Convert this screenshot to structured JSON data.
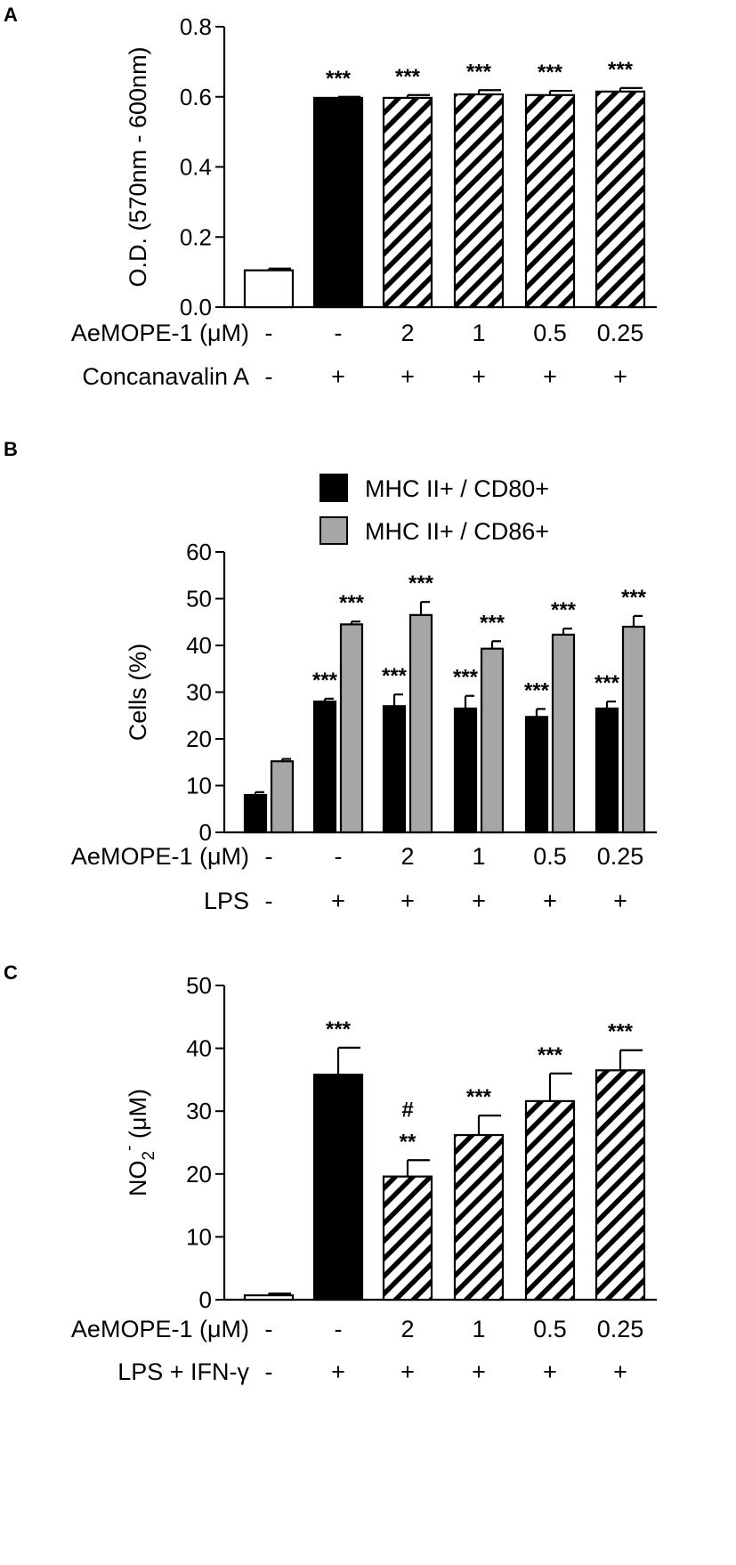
{
  "figure": {
    "colors": {
      "ink": "#000000",
      "background": "#ffffff",
      "black_bar": "#000000",
      "grey_bar": "#a6a6a6",
      "white_bar": "#ffffff"
    }
  },
  "chart_data": [
    {
      "panel": "A",
      "type": "bar",
      "title": "",
      "xlabel": "",
      "ylabel": "O.D. (570nm - 600nm)",
      "ylim": [
        0,
        0.8
      ],
      "yticks": [
        "0.0",
        "0.2",
        "0.4",
        "0.6",
        "0.8"
      ],
      "y_tick_values": [
        0,
        0.2,
        0.4,
        0.6,
        0.8
      ],
      "bar_styles": [
        "white",
        "black",
        "hatched",
        "hatched",
        "hatched",
        "hatched"
      ],
      "values": [
        0.105,
        0.597,
        0.597,
        0.607,
        0.605,
        0.615
      ],
      "errors": [
        0.005,
        0.003,
        0.008,
        0.012,
        0.012,
        0.01
      ],
      "significance": [
        "",
        "***",
        "***",
        "***",
        "***",
        "***"
      ],
      "rows": [
        {
          "label": "AeMOPE-1 (μM)",
          "values": [
            "-",
            "-",
            "2",
            "1",
            "0.5",
            "0.25"
          ]
        },
        {
          "label": "Concanavalin A",
          "values": [
            "-",
            "+",
            "+",
            "+",
            "+",
            "+"
          ]
        }
      ]
    },
    {
      "panel": "B",
      "type": "bar",
      "title": "",
      "xlabel": "",
      "ylabel": "Cells (%)",
      "ylim": [
        0,
        60
      ],
      "yticks": [
        "0",
        "10",
        "20",
        "30",
        "40",
        "50",
        "60"
      ],
      "y_tick_values": [
        0,
        10,
        20,
        30,
        40,
        50,
        60
      ],
      "legend_position": "top-right",
      "series": [
        {
          "name": "MHC II+ / CD80+",
          "style": "black",
          "values": [
            8.0,
            28.0,
            27.0,
            26.5,
            24.7,
            26.5
          ],
          "errors": [
            0.6,
            0.6,
            2.5,
            2.7,
            1.7,
            1.5
          ],
          "significance": [
            "",
            "***",
            "***",
            "***",
            "***",
            "***"
          ]
        },
        {
          "name": "MHC II+ / CD86+",
          "style": "grey",
          "values": [
            15.2,
            44.5,
            46.5,
            39.3,
            42.3,
            44.0
          ],
          "errors": [
            0.5,
            0.6,
            2.8,
            1.6,
            1.3,
            2.3
          ],
          "significance": [
            "",
            "***",
            "***",
            "***",
            "***",
            "***"
          ]
        }
      ],
      "rows": [
        {
          "label": "AeMOPE-1 (μM)",
          "values": [
            "-",
            "-",
            "2",
            "1",
            "0.5",
            "0.25"
          ]
        },
        {
          "label": "LPS",
          "values": [
            "-",
            "+",
            "+",
            "+",
            "+",
            "+"
          ]
        }
      ]
    },
    {
      "panel": "C",
      "type": "bar",
      "title": "",
      "xlabel": "",
      "ylabel": "NO2- (μM)",
      "ylabel_parts": {
        "base": "NO",
        "sub": "2",
        "sup": "-",
        "rest": " (μM)"
      },
      "ylim": [
        0,
        50
      ],
      "yticks": [
        "0",
        "10",
        "20",
        "30",
        "40",
        "50"
      ],
      "y_tick_values": [
        0,
        10,
        20,
        30,
        40,
        50
      ],
      "bar_styles": [
        "white",
        "black",
        "hatched",
        "hatched",
        "hatched",
        "hatched"
      ],
      "values": [
        0.7,
        35.8,
        19.6,
        26.2,
        31.6,
        36.5
      ],
      "errors": [
        0.3,
        4.3,
        2.6,
        3.1,
        4.4,
        3.2
      ],
      "significance": [
        "",
        "***",
        "**",
        "***",
        "***",
        "***"
      ],
      "extra_marks": [
        "",
        "",
        "#",
        "",
        "",
        ""
      ],
      "rows": [
        {
          "label": "AeMOPE-1 (μM)",
          "values": [
            "-",
            "-",
            "2",
            "1",
            "0.5",
            "0.25"
          ]
        },
        {
          "label": "LPS + IFN-γ",
          "values": [
            "-",
            "+",
            "+",
            "+",
            "+",
            "+"
          ]
        }
      ]
    }
  ]
}
